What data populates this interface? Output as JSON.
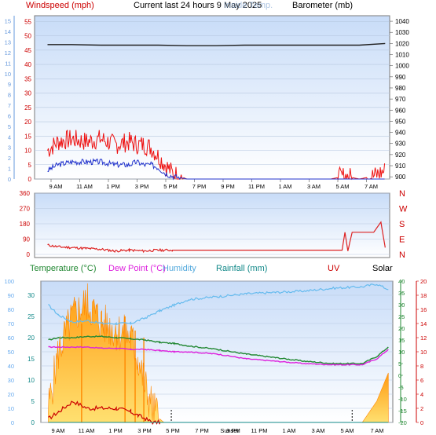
{
  "header": {
    "title": "Current last 24 hours 9 May 2025",
    "windspeed_label": "Windspeed (mph)",
    "barometer_label": "Barometer (mb)",
    "overlay_label": "Inside Temp."
  },
  "x_ticks": [
    "9 AM",
    "11 AM",
    "1 PM",
    "3 PM",
    "5 PM",
    "7 PM",
    "9 PM",
    "11 PM",
    "1 AM",
    "3 AM",
    "5 AM",
    "7 AM"
  ],
  "bottom_x_labels": [
    "9 AM",
    "11 AM",
    "1 PM",
    "3 PM",
    "5 PM",
    "7 PM",
    "Sunset",
    "9 PM",
    "11 PM",
    "1 AM",
    "3 AM",
    "5 AM",
    "7 AM"
  ],
  "legend": {
    "temperature": "Temperature (°C)",
    "dewpoint": "Dew Point (°C)",
    "humidity": "Humidity",
    "rainfall": "Rainfall (mm)",
    "uv": "UV",
    "solar": "Solar"
  },
  "colors": {
    "wind_avg": "#2233cc",
    "wind_gust": "#ee1111",
    "barometer": "#222222",
    "direction": "#dd2222",
    "temperature": "#228833",
    "dewpoint": "#dd22dd",
    "humidity": "#66bbee",
    "uv": "#cc0000",
    "solar_fill": "#ffb020",
    "solar_line": "#ff8800",
    "panel_top": "#c8dcf8",
    "panel_bottom": "#ffffff"
  },
  "chart_data": [
    {
      "type": "line",
      "name": "wind-and-barometer",
      "x_unit": "hours since 08:00",
      "y_left_ticks": [
        0,
        5,
        10,
        15,
        20,
        25,
        30,
        35,
        40,
        45,
        50,
        55
      ],
      "y_left_range": [
        0,
        57
      ],
      "y_far_left_ticks": [
        0,
        1,
        2,
        3,
        4,
        5,
        6,
        7,
        8,
        9,
        10,
        11,
        12,
        13,
        14,
        15
      ],
      "y_right_ticks": [
        900,
        910,
        920,
        930,
        940,
        950,
        960,
        970,
        980,
        990,
        1000,
        1010,
        1020,
        1030,
        1040
      ],
      "y_right_range": [
        898,
        1045
      ],
      "series": [
        {
          "name": "Windspeed",
          "axis": "left",
          "x": [
            0.3,
            1,
            2,
            3,
            4,
            5,
            6,
            6.5,
            7,
            7.5,
            8,
            8.5,
            9,
            10,
            12,
            16,
            20,
            23.8
          ],
          "values": [
            3,
            5,
            6,
            6,
            6,
            5,
            5,
            6,
            5,
            5,
            4,
            2,
            1,
            0,
            0,
            0,
            0,
            0
          ]
        },
        {
          "name": "Gust",
          "axis": "left",
          "x": [
            0.3,
            1,
            2,
            3,
            4,
            5,
            6,
            6.5,
            7,
            7.5,
            8,
            8.5,
            9,
            10,
            12,
            16,
            20,
            21,
            22,
            23,
            23.8
          ],
          "values": [
            10,
            13,
            14,
            13,
            14,
            12,
            13,
            12,
            12,
            11,
            8,
            5,
            2,
            0,
            0,
            0,
            0,
            1,
            0,
            1,
            3
          ]
        },
        {
          "name": "Barometer",
          "axis": "right",
          "x": [
            0.3,
            2,
            4,
            6,
            8,
            10,
            12,
            14,
            16,
            18,
            20,
            22,
            23.8
          ],
          "values": [
            1019,
            1019,
            1018.5,
            1018.5,
            1018.5,
            1018,
            1018,
            1018.5,
            1018.5,
            1018.5,
            1018.5,
            1018.5,
            1020
          ]
        }
      ]
    },
    {
      "type": "line",
      "name": "wind-direction",
      "y_left_ticks": [
        0,
        90,
        180,
        270,
        360
      ],
      "y_left_range": [
        0,
        360
      ],
      "y_right_labels": [
        "N",
        "W",
        "S",
        "E",
        "N"
      ],
      "series": [
        {
          "name": "Direction",
          "x": [
            0.3,
            1,
            2,
            3,
            4,
            5,
            6,
            7,
            8,
            9,
            10,
            12,
            14,
            16,
            18,
            20,
            20.8,
            21,
            21.2,
            21.5,
            22,
            23,
            23.5,
            23.8
          ],
          "values": [
            55,
            45,
            40,
            35,
            30,
            20,
            25,
            20,
            25,
            25,
            25,
            25,
            25,
            25,
            25,
            25,
            25,
            130,
            20,
            130,
            130,
            130,
            190,
            40
          ]
        }
      ]
    },
    {
      "type": "line",
      "name": "temperature-humidity-rain-uv-solar",
      "y_humidity_ticks": [
        0,
        10,
        20,
        30,
        40,
        50,
        60,
        70,
        80,
        90,
        100
      ],
      "y_rain_ticks": [
        0,
        5,
        10,
        15,
        20,
        25,
        30
      ],
      "y_temp_ticks": [
        -20,
        -15,
        -10,
        -5,
        0,
        5,
        10,
        15,
        20,
        25,
        30,
        35,
        40
      ],
      "y_uv_ticks": [
        0,
        2,
        4,
        6,
        8,
        10,
        12,
        14,
        16,
        18,
        20
      ],
      "series": [
        {
          "name": "Humidity",
          "x": [
            0.3,
            1,
            2,
            3,
            4,
            5,
            6,
            7,
            8,
            9,
            10,
            12,
            14,
            16,
            18,
            20,
            22,
            23,
            23.8
          ],
          "values": [
            83,
            76,
            71,
            72,
            70,
            70,
            70,
            74,
            79,
            83,
            87,
            89,
            91,
            92,
            93,
            95,
            96,
            98,
            94
          ]
        },
        {
          "name": "Temperature",
          "x": [
            0.3,
            1,
            2,
            3,
            4,
            5,
            6,
            7,
            8,
            9,
            10,
            12,
            14,
            16,
            18,
            20,
            22,
            23,
            23.8
          ],
          "values": [
            15,
            16,
            16,
            16.5,
            16.5,
            16,
            15.5,
            15,
            14,
            13.5,
            12.5,
            11,
            9,
            7.5,
            6,
            5,
            5,
            8,
            12
          ]
        },
        {
          "name": "Dew Point",
          "x": [
            0.3,
            1,
            2,
            3,
            4,
            5,
            6,
            7,
            8,
            9,
            10,
            12,
            14,
            16,
            18,
            20,
            22,
            23,
            23.8
          ],
          "values": [
            12,
            12,
            12,
            12,
            11.5,
            11.5,
            11,
            11,
            10.5,
            10,
            10,
            9,
            7,
            6,
            5,
            4.5,
            4.5,
            7,
            11
          ]
        },
        {
          "name": "UV",
          "x": [
            0.3,
            1,
            2,
            3,
            4,
            5,
            6,
            6.5,
            7,
            7.5,
            8
          ],
          "values": [
            0.5,
            1.5,
            3,
            2,
            2,
            2,
            1.5,
            1,
            0.5,
            0,
            0
          ]
        },
        {
          "name": "Solar",
          "x": [
            0.3,
            1,
            2,
            3,
            4,
            5,
            6,
            6.5,
            7,
            7.5,
            8,
            8.3,
            22,
            23,
            23.8
          ],
          "values": [
            2,
            10,
            15,
            17,
            14,
            13,
            12,
            9,
            5,
            2,
            0.5,
            0,
            0,
            3,
            7
          ]
        },
        {
          "name": "Rainfall",
          "x": [
            0.3,
            23.8
          ],
          "values": [
            0,
            0
          ]
        }
      ],
      "markers": {
        "sunset_hour": 8.8,
        "sunrise_hour": 21.3
      }
    }
  ]
}
